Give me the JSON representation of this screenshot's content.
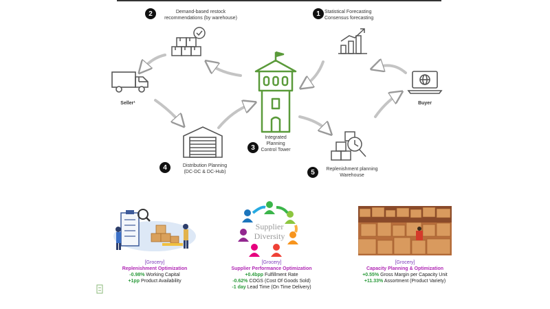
{
  "steps": [
    {
      "number": "1",
      "label_lines": [
        "Statistical Forecasting",
        "Consensus forecasting"
      ]
    },
    {
      "number": "2",
      "label_lines": [
        "Demand-based restock",
        "recommendations (by warehouse)"
      ]
    },
    {
      "number": "3",
      "label_lines": [
        "Integrated",
        "Planning",
        "Control Tower"
      ]
    },
    {
      "number": "4",
      "label_lines": [
        "Distribution Planning",
        "(DC-DC & DC-Hub)"
      ]
    },
    {
      "number": "5",
      "label_lines": [
        "Replenishment planning",
        "Warehouse"
      ]
    }
  ],
  "actors": {
    "seller": "Seller¹",
    "buyer": "Buyer"
  },
  "supplier_logo": {
    "line1": "Supplier",
    "line2": "Diversity"
  },
  "cases": [
    {
      "category": "[Grocery]",
      "title": "Replenishment Optimization",
      "rows": [
        {
          "value": "-0.98%",
          "text": "Working Capital"
        },
        {
          "value": "+1pp",
          "text": "Product Availability"
        }
      ]
    },
    {
      "category": "[Grocery]",
      "title": "Supplier Performance Optimization",
      "rows": [
        {
          "value": "+0.4bpp",
          "text": "Fulfillment Rate"
        },
        {
          "value": "-0.62%",
          "text": "COGS (Cost Of Goods Sold)"
        },
        {
          "value": "-1 day",
          "text": "Lead Time (On Time Delivery)"
        }
      ]
    },
    {
      "category": "[Grocery]",
      "title": "Capacity Planning & Optimization",
      "rows": [
        {
          "value": "+0.55%",
          "text": "Gross Margin per Capacity Unit"
        },
        {
          "value": "+11.33%",
          "text": "Assortment (Product Variety)"
        }
      ]
    }
  ],
  "colors": {
    "tower": "#5a9a3a",
    "icon": "#555555",
    "category": "#7a35b8",
    "title": "#b027b4",
    "value": "#2a9a3a"
  }
}
